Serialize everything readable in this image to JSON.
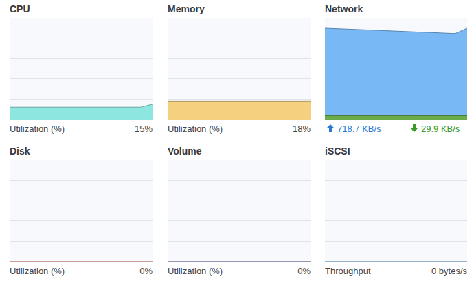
{
  "chart_data": [
    {
      "type": "area",
      "title": "CPU",
      "xlabel": "Utilization (%)",
      "x": [
        0,
        1,
        2,
        3,
        4,
        5,
        6,
        7,
        8,
        9,
        10,
        11,
        12
      ],
      "xlim": [
        0,
        12
      ],
      "ylim": [
        0,
        100
      ],
      "yticks": [
        0,
        20,
        40,
        60,
        80,
        100
      ],
      "grid": true,
      "tick_labels": false,
      "series": [
        {
          "color": "#8ee6e0",
          "values": [
            12,
            12,
            12,
            12,
            12,
            12,
            12,
            12,
            12,
            12,
            12,
            12,
            15
          ],
          "value_labels": [
            null,
            null,
            null,
            null,
            null,
            null,
            null,
            null,
            null,
            null,
            null,
            null,
            "15%"
          ]
        }
      ]
    },
    {
      "type": "area",
      "title": "Memory",
      "xlabel": "Utilization (%)",
      "x": [
        0,
        1,
        2,
        3,
        4,
        5,
        6,
        7,
        8,
        9,
        10,
        11,
        12
      ],
      "xlim": [
        0,
        12
      ],
      "ylim": [
        0,
        100
      ],
      "yticks": [
        0,
        20,
        40,
        60,
        80,
        100
      ],
      "grid": true,
      "tick_labels": false,
      "series": [
        {
          "color": "#f5d07e",
          "values": [
            18,
            18,
            18,
            18,
            18,
            18,
            18,
            18,
            18,
            18,
            18,
            18,
            18
          ],
          "value_labels": [
            null,
            null,
            null,
            null,
            null,
            null,
            null,
            null,
            null,
            null,
            null,
            null,
            "18%"
          ]
        }
      ]
    },
    {
      "type": "area",
      "title": "Network",
      "x": [
        0,
        1,
        2,
        3,
        4,
        5,
        6,
        7,
        8,
        9,
        10,
        11,
        12
      ],
      "xlim": [
        0,
        12
      ],
      "ylim": [
        0,
        800
      ],
      "yticks": [
        0,
        160,
        320,
        480,
        640,
        800
      ],
      "grid": true,
      "tick_labels": false,
      "series": [
        {
          "color": "#78b8f5",
          "values": [
            719,
            716,
            712,
            708,
            704,
            700,
            697,
            693,
            689,
            685,
            681,
            677,
            718.7
          ],
          "value_labels": [
            null,
            null,
            null,
            null,
            null,
            null,
            null,
            null,
            null,
            null,
            null,
            null,
            "718.7 KB/s"
          ]
        },
        {
          "color": "#6aab4a",
          "values": [
            30,
            30,
            30,
            30,
            30,
            30,
            30,
            30,
            30,
            30,
            30,
            30,
            29.9
          ],
          "value_labels": [
            null,
            null,
            null,
            null,
            null,
            null,
            null,
            null,
            null,
            null,
            null,
            null,
            "29.9 KB/s"
          ]
        }
      ]
    },
    {
      "type": "area",
      "title": "Disk",
      "xlabel": "Utilization (%)",
      "x": [
        0,
        1,
        2,
        3,
        4,
        5,
        6,
        7,
        8,
        9,
        10,
        11,
        12
      ],
      "xlim": [
        0,
        12
      ],
      "ylim": [
        0,
        100
      ],
      "yticks": [
        0,
        20,
        40,
        60,
        80,
        100
      ],
      "grid": true,
      "tick_labels": false,
      "series": [
        {
          "color": "#d9534f",
          "values": [
            0,
            0,
            0,
            0,
            0,
            0,
            0,
            0,
            0,
            0,
            0,
            0,
            0
          ],
          "value_labels": [
            null,
            null,
            null,
            null,
            null,
            null,
            null,
            null,
            null,
            null,
            null,
            null,
            "0%"
          ]
        }
      ]
    },
    {
      "type": "area",
      "title": "Volume",
      "xlabel": "Utilization (%)",
      "x": [
        0,
        1,
        2,
        3,
        4,
        5,
        6,
        7,
        8,
        9,
        10,
        11,
        12
      ],
      "xlim": [
        0,
        12
      ],
      "ylim": [
        0,
        100
      ],
      "yticks": [
        0,
        20,
        40,
        60,
        80,
        100
      ],
      "grid": true,
      "tick_labels": false,
      "series": [
        {
          "color": "#4a4aa0",
          "values": [
            0,
            0,
            0,
            0,
            0,
            0,
            0,
            0,
            0,
            0,
            0,
            0,
            0
          ],
          "value_labels": [
            null,
            null,
            null,
            null,
            null,
            null,
            null,
            null,
            null,
            null,
            null,
            null,
            "0%"
          ]
        }
      ]
    },
    {
      "type": "area",
      "title": "iSCSI",
      "xlabel": "Throughput",
      "x": [
        0,
        1,
        2,
        3,
        4,
        5,
        6,
        7,
        8,
        9,
        10,
        11,
        12
      ],
      "xlim": [
        0,
        12
      ],
      "ylim": [
        0,
        100
      ],
      "yticks": [
        0,
        20,
        40,
        60,
        80,
        100
      ],
      "grid": true,
      "tick_labels": false,
      "series": [
        {
          "color": "#4a90d9",
          "values": [
            0,
            0,
            0,
            0,
            0,
            0,
            0,
            0,
            0,
            0,
            0,
            0,
            0
          ],
          "value_labels": [
            null,
            null,
            null,
            null,
            null,
            null,
            null,
            null,
            null,
            null,
            null,
            null,
            "0 bytes/s"
          ]
        }
      ]
    }
  ]
}
